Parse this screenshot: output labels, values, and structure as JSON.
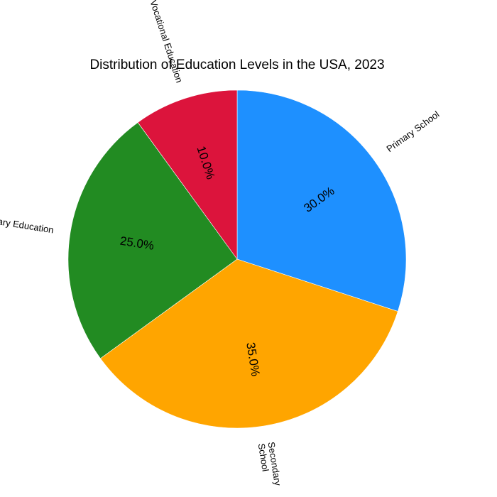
{
  "chart_data": {
    "type": "pie",
    "title": "Distribution of Education Levels in the USA, 2023",
    "start_angle_deg": 90,
    "direction": "clockwise",
    "slices": [
      {
        "label": "Primary School",
        "value": 30.0,
        "pct_label": "30.0%",
        "color": "#1E90FF"
      },
      {
        "label": "Secondary\nSchool",
        "value": 35.0,
        "pct_label": "35.0%",
        "color": "#FFA500"
      },
      {
        "label": "Tertiary Education",
        "value": 25.0,
        "pct_label": "25.0%",
        "color": "#228B22"
      },
      {
        "label": "Vocational Education",
        "value": 10.0,
        "pct_label": "10.0%",
        "color": "#DC143C"
      }
    ]
  }
}
